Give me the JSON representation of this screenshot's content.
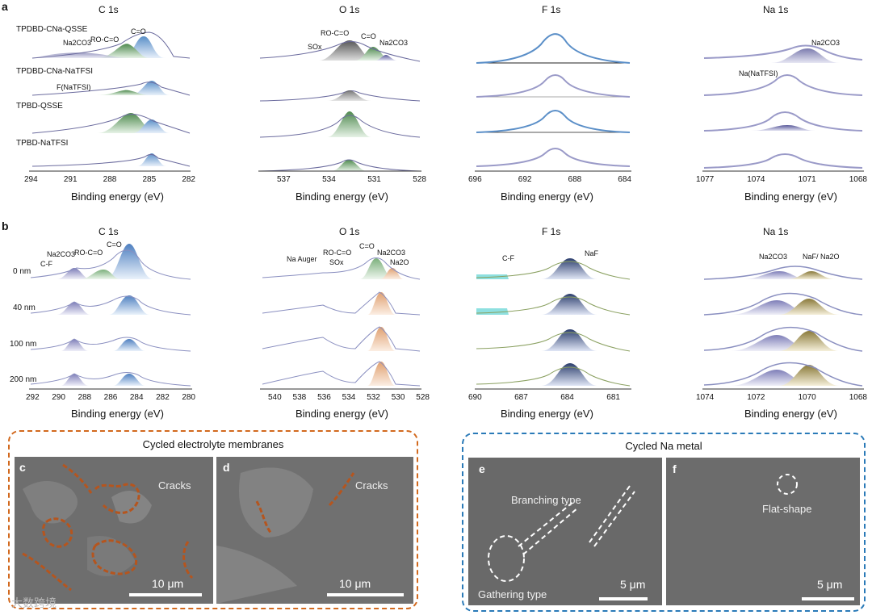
{
  "panel_a": {
    "letter": "a",
    "samples": [
      "TPDBD-CNa-QSSE",
      "TPDBD-CNa-NaTFSI",
      "TPBD-QSSE",
      "TPBD-NaTFSI"
    ],
    "c1s": {
      "title": "C 1s",
      "ticks": [
        "294",
        "291",
        "288",
        "285",
        "282"
      ],
      "annotations": [
        "C=O",
        "RO-C=O",
        "Na2CO3",
        "F(NaTFSI)"
      ]
    },
    "o1s": {
      "title": "O 1s",
      "ticks": [
        "537",
        "534",
        "531",
        "528"
      ],
      "annotations": [
        "RO-C=O",
        "C=O",
        "SOx",
        "Na2CO3"
      ]
    },
    "f1s": {
      "title": "F 1s",
      "ticks": [
        "696",
        "692",
        "688",
        "684"
      ]
    },
    "na1s": {
      "title": "Na 1s",
      "ticks": [
        "1077",
        "1074",
        "1071",
        "1068"
      ],
      "annotations": [
        "Na2CO3",
        "Na(NaTFSI)"
      ]
    },
    "xlabel": "Binding energy (eV)"
  },
  "panel_b": {
    "letter": "b",
    "depths": [
      "0 nm",
      "40 nm",
      "100 nm",
      "200 nm"
    ],
    "c1s": {
      "title": "C 1s",
      "ticks": [
        "292",
        "290",
        "288",
        "286",
        "284",
        "282",
        "280"
      ],
      "annotations": [
        "C=O",
        "RO-C=O",
        "Na2CO3",
        "C-F"
      ]
    },
    "o1s": {
      "title": "O 1s",
      "ticks": [
        "540",
        "538",
        "536",
        "534",
        "532",
        "530",
        "528"
      ],
      "annotations": [
        "Na Auger",
        "RO-C=O",
        "C=O",
        "SOx",
        "Na2CO3",
        "Na2O"
      ]
    },
    "f1s": {
      "title": "F 1s",
      "ticks": [
        "690",
        "687",
        "684",
        "681"
      ],
      "annotations": [
        "C-F",
        "NaF"
      ]
    },
    "na1s": {
      "title": "Na 1s",
      "ticks": [
        "1074",
        "1072",
        "1070",
        "1068"
      ],
      "annotations": [
        "Na2CO3",
        "NaF/ Na2O"
      ]
    },
    "xlabel": "Binding energy (eV)"
  },
  "membranes": {
    "title": "Cycled electrolyte membranes",
    "c_letter": "c",
    "d_letter": "d",
    "cracks": "Cracks",
    "scale": "10 μm"
  },
  "na_metal": {
    "title": "Cycled Na metal",
    "e_letter": "e",
    "f_letter": "f",
    "branching": "Branching type",
    "gathering": "Gathering type",
    "flat": "Flat-shape",
    "scale": "5 μm"
  },
  "watermark": "大数跨境",
  "colors": {
    "orange_frame": "#d2691e",
    "blue_frame": "#2a7ab8",
    "markers": "#8a8fc0"
  }
}
